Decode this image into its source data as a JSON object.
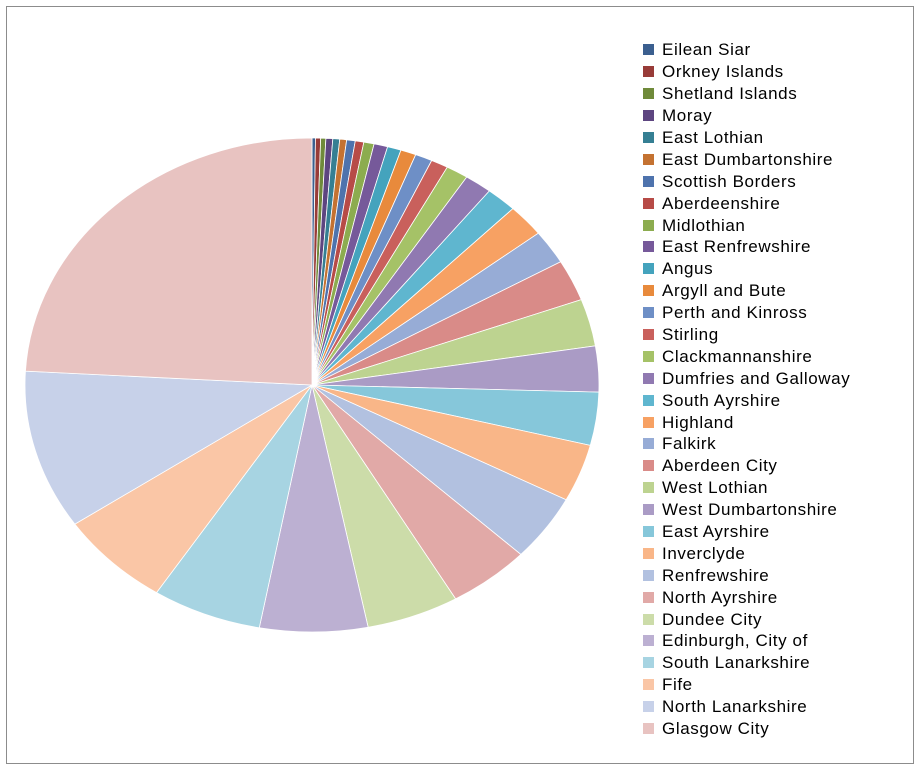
{
  "chart_data": {
    "type": "pie",
    "title": "",
    "legend_position": "right",
    "categories": [
      "Eilean Siar",
      "Orkney Islands",
      "Shetland Islands",
      "Moray",
      "East Lothian",
      "East Dumbartonshire",
      "Scottish Borders",
      "Aberdeenshire",
      "Midlothian",
      "East Renfrewshire",
      "Angus",
      "Argyll and Bute",
      "Perth and Kinross",
      "Stirling",
      "Clackmannanshire",
      "Dumfries and Galloway",
      "South Ayrshire",
      "Highland",
      "Falkirk",
      "Aberdeen City",
      "West Lothian",
      "West Dumbartonshire",
      "East Ayrshire",
      "Inverclyde",
      "Renfrewshire",
      "North Ayrshire",
      "Dundee City",
      "Edinburgh, City of",
      "South Lanarkshire",
      "Fife",
      "North Lanarkshire",
      "Glasgow City"
    ],
    "values": [
      0.2,
      0.3,
      0.3,
      0.4,
      0.4,
      0.4,
      0.5,
      0.5,
      0.6,
      0.8,
      0.8,
      0.9,
      1.0,
      1.0,
      1.3,
      1.6,
      1.8,
      2.2,
      2.3,
      2.8,
      3.2,
      3.1,
      3.6,
      3.9,
      4.5,
      4.8,
      5.4,
      6.3,
      6.4,
      6.6,
      10.8,
      25.0
    ],
    "colors": [
      "#3b5f8f",
      "#983b38",
      "#6f8a3a",
      "#5d4580",
      "#357f93",
      "#c47231",
      "#4e73ad",
      "#b74b47",
      "#8cac4f",
      "#76599a",
      "#44a3bd",
      "#e88a3c",
      "#6e8fc6",
      "#c9605c",
      "#a5c267",
      "#9079b1",
      "#5fb6cf",
      "#f7a163",
      "#97acd6",
      "#d98b88",
      "#bdd390",
      "#aa9bc5",
      "#86c7da",
      "#f9b688",
      "#b2c1e0",
      "#e1a9a7",
      "#ccdca9",
      "#bcb0d2",
      "#a7d4e2",
      "#fac6a6",
      "#c7d1e9",
      "#e8c3c1"
    ]
  }
}
